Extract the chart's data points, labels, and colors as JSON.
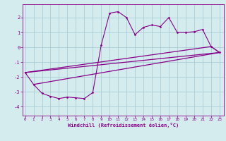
{
  "background_color": "#d4ecee",
  "grid_color": "#aacdd4",
  "line_color": "#880088",
  "marker_color": "#880088",
  "xlim": [
    -0.3,
    23.5
  ],
  "ylim": [
    -4.6,
    2.9
  ],
  "yticks": [
    -4,
    -3,
    -2,
    -1,
    0,
    1,
    2
  ],
  "xticks": [
    0,
    1,
    2,
    3,
    4,
    5,
    6,
    7,
    8,
    9,
    10,
    11,
    12,
    13,
    14,
    15,
    16,
    17,
    18,
    19,
    20,
    21,
    22,
    23
  ],
  "xlabel": "Windchill (Refroidissement éolien,°C)",
  "series": [
    [
      0,
      -1.7
    ],
    [
      1,
      -2.5
    ],
    [
      2,
      -3.1
    ],
    [
      3,
      -3.3
    ],
    [
      4,
      -3.45
    ],
    [
      5,
      -3.35
    ],
    [
      6,
      -3.4
    ],
    [
      7,
      -3.45
    ],
    [
      8,
      -3.05
    ],
    [
      9,
      0.15
    ],
    [
      10,
      2.3
    ],
    [
      11,
      2.4
    ],
    [
      12,
      2.0
    ],
    [
      13,
      0.85
    ],
    [
      14,
      1.35
    ],
    [
      15,
      1.5
    ],
    [
      16,
      1.4
    ],
    [
      17,
      2.0
    ],
    [
      18,
      1.0
    ],
    [
      19,
      1.0
    ],
    [
      20,
      1.05
    ],
    [
      21,
      1.2
    ],
    [
      22,
      0.05
    ],
    [
      23,
      -0.35
    ]
  ],
  "line1": [
    [
      0,
      -1.7
    ],
    [
      23,
      -0.35
    ]
  ],
  "line2": [
    [
      0,
      -1.7
    ],
    [
      22,
      0.05
    ],
    [
      23,
      -0.35
    ]
  ],
  "line3": [
    [
      1,
      -2.5
    ],
    [
      23,
      -0.35
    ]
  ]
}
